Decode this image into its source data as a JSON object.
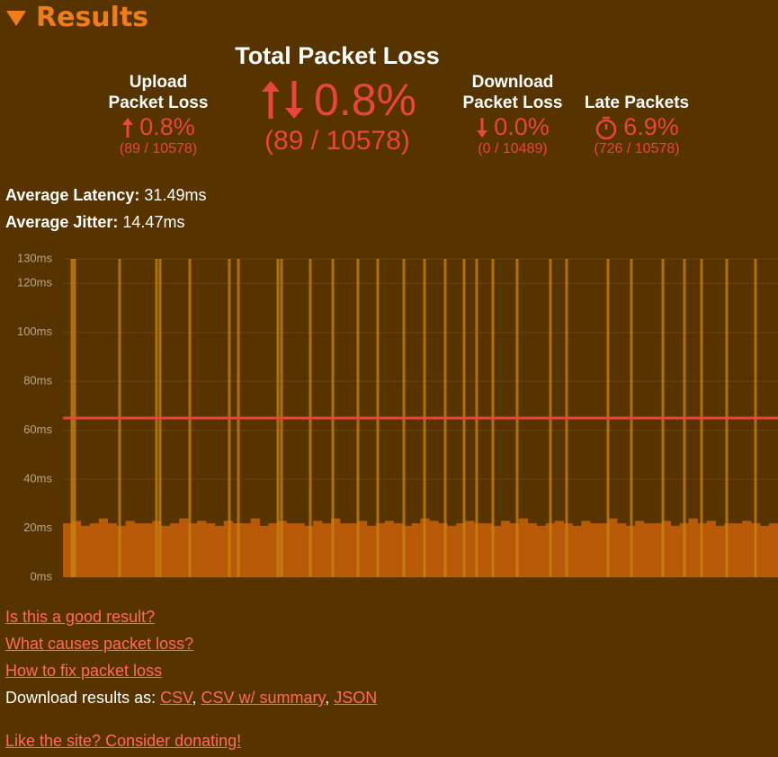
{
  "header": {
    "title": "Results"
  },
  "summary": {
    "total": {
      "label": "Total Packet Loss",
      "value": "0.8%",
      "count": "(89 / 10578)"
    },
    "upload": {
      "label": [
        "Upload",
        "Packet Loss"
      ],
      "value": "0.8%",
      "count": "(89 / 10578)"
    },
    "download": {
      "label": [
        "Download",
        "Packet Loss"
      ],
      "value": "0.0%",
      "count": "(0 / 10489)"
    },
    "late": {
      "label": [
        "Late Packets"
      ],
      "value": "6.9%",
      "count": "(726 / 10578)"
    }
  },
  "averages": {
    "latency": {
      "label": "Average Latency:",
      "value": "31.49ms"
    },
    "jitter": {
      "label": "Average Jitter:",
      "value": "14.47ms"
    }
  },
  "chart_data": {
    "type": "bar",
    "ylim": [
      0,
      130
    ],
    "yticks": [
      {
        "value": 0,
        "label": "0ms"
      },
      {
        "value": 20,
        "label": "20ms"
      },
      {
        "value": 40,
        "label": "40ms"
      },
      {
        "value": 60,
        "label": "60ms"
      },
      {
        "value": 80,
        "label": "80ms"
      },
      {
        "value": 100,
        "label": "100ms"
      },
      {
        "value": 120,
        "label": "120ms"
      },
      {
        "value": 130,
        "label": "130ms"
      }
    ],
    "grid": true,
    "color": "#b85a08",
    "values": [
      22,
      23,
      21,
      22,
      24,
      22,
      21,
      23,
      22,
      22,
      23,
      21,
      22,
      24,
      22,
      23,
      22,
      21,
      23,
      22,
      22,
      24,
      21,
      22,
      23,
      22,
      22,
      21,
      23,
      22,
      24,
      22,
      22,
      23,
      21,
      22,
      23,
      22,
      21,
      22,
      24,
      23,
      22,
      21,
      22,
      23,
      22,
      22,
      21,
      23,
      22,
      24,
      22,
      21,
      22,
      23,
      22,
      21,
      23,
      22,
      22,
      24,
      22,
      21,
      23,
      22,
      22,
      23,
      21,
      22,
      24,
      22,
      23,
      21,
      22,
      22,
      23,
      22,
      21,
      22
    ],
    "xlim": [
      0,
      10578
    ],
    "loss_x": [
      133,
      173,
      838,
      1384,
      1437,
      1876,
      2462,
      2595,
      3180,
      3233,
      3659,
      3992,
      4364,
      4657,
      5043,
      5349,
      5655,
      5934,
      6120,
      6360,
      6719,
      7212,
      7451,
      8063,
      8409,
      8875,
      9194,
      9447,
      9820,
      10245
    ],
    "loss_color": "#c98512",
    "threshold": 65,
    "threshold_color": "#e8453c"
  },
  "links": {
    "good": "Is this a good result?",
    "causes": "What causes packet loss?",
    "fix": "How to fix packet loss",
    "download": {
      "label": "Download results as:",
      "items": [
        "CSV",
        "CSV w/ summary",
        "JSON"
      ],
      "separator": ","
    },
    "donate": "Like the site? Consider donating!"
  }
}
